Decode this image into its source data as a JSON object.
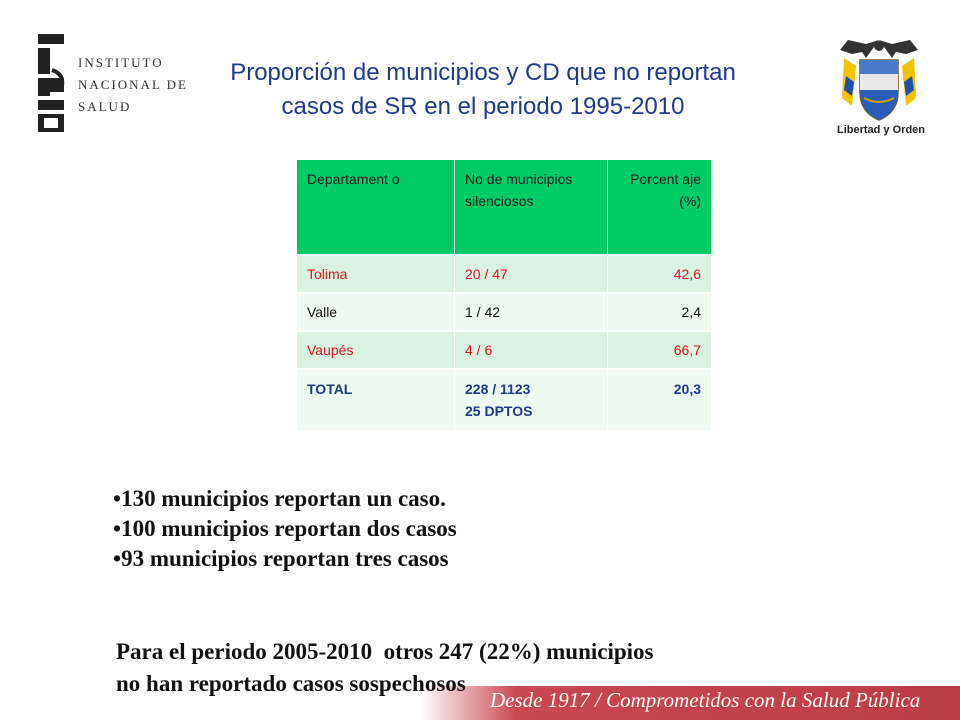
{
  "logo": {
    "lines": [
      "INSTITUTO",
      "NACIONAL DE",
      "SALUD"
    ],
    "mark_color": "#222222"
  },
  "title": {
    "line1": "Proporción de municipios y CD que no reportan",
    "line2": "casos de SR en el periodo 1995-2010",
    "color": "#1f3a8a"
  },
  "coat_of_arms": {
    "caption": "Libertad y Orden"
  },
  "table": {
    "header_color": "#00cc66",
    "headers": [
      "Departament o",
      "No de municipios silenciosos",
      "Porcent aje (%)"
    ],
    "rows": [
      {
        "dept": "Tolima",
        "ratio": "20 / 47",
        "pct": "42,6"
      },
      {
        "dept": "Valle",
        "ratio": "1 / 42",
        "pct": "2,4"
      },
      {
        "dept": "Vaupés",
        "ratio": "4 / 6",
        "pct": "66,7"
      }
    ],
    "total": {
      "dept": "TOTAL",
      "ratio": "228 / 1123",
      "ratio_sub": "25 DPTOS",
      "pct": "20,3"
    }
  },
  "bullets": [
    "130 municipios reportan un caso.",
    "100 municipios reportan dos casos",
    "93 municipios reportan tres casos"
  ],
  "paragraph": {
    "line1": "Para el periodo 2005-2010  otros 247 (22%) municipios",
    "line2": "no han reportado casos sospechosos"
  },
  "footer": {
    "text": "Desde 1917 / Comprometidos con la Salud Pública",
    "color": "#b52833"
  }
}
